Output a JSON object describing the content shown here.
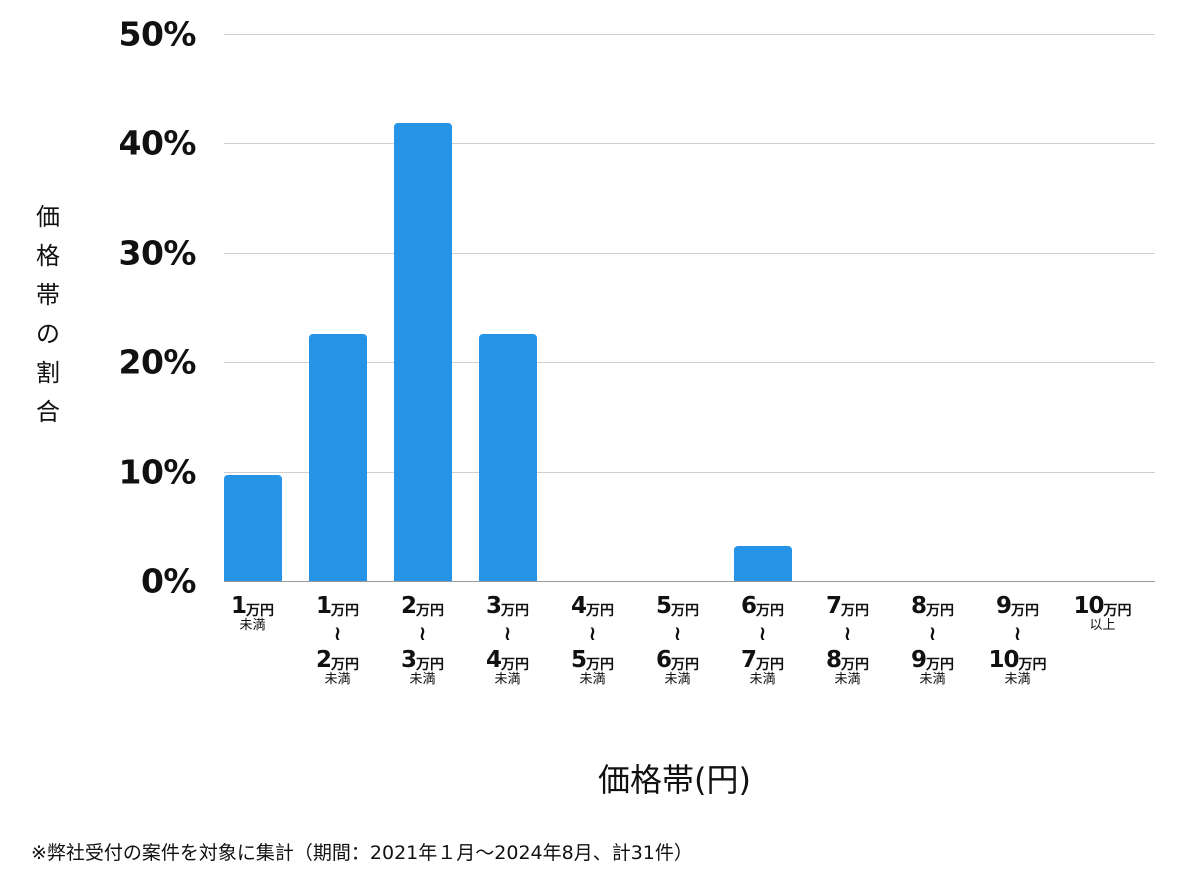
{
  "chart_data": {
    "type": "bar",
    "title": "",
    "xlabel": "価格帯(円)",
    "ylabel": "価格帯の割合",
    "ylim": [
      0,
      50
    ],
    "yticks": [
      "0%",
      "10%",
      "20%",
      "30%",
      "40%",
      "50%"
    ],
    "grid": true,
    "legend": null,
    "categories": [
      "1万円未満",
      "1万円〜2万円未満",
      "2万円〜3万円未満",
      "3万円〜4万円未満",
      "4万円〜5万円未満",
      "5万円〜6万円未満",
      "6万円〜7万円未満",
      "7万円〜8万円未満",
      "8万円〜9万円未満",
      "9万円〜10万円未満",
      "10万円以上"
    ],
    "values": [
      9.7,
      22.6,
      41.9,
      22.6,
      0,
      0,
      3.2,
      0,
      0,
      0,
      0
    ],
    "bar_color": "#2593e6",
    "footnote": "※弊社受付の案件を対象に集計（期間：2021年１月〜2024年8月、計31件）"
  },
  "axis": {
    "y_ticks": [
      {
        "label": "50%",
        "value": 50
      },
      {
        "label": "40%",
        "value": 40
      },
      {
        "label": "30%",
        "value": 30
      },
      {
        "label": "20%",
        "value": 20
      },
      {
        "label": "10%",
        "value": 10
      },
      {
        "label": "0%",
        "value": 0
      }
    ],
    "y_title_chars": [
      "価",
      "格",
      "帯",
      "の",
      "割",
      "合"
    ],
    "x_title": "価格帯(円)"
  },
  "x_labels": [
    {
      "a": "1",
      "b": null,
      "suffix": "未満"
    },
    {
      "a": "1",
      "b": "2",
      "suffix": "未満"
    },
    {
      "a": "2",
      "b": "3",
      "suffix": "未満"
    },
    {
      "a": "3",
      "b": "4",
      "suffix": "未満"
    },
    {
      "a": "4",
      "b": "5",
      "suffix": "未満"
    },
    {
      "a": "5",
      "b": "6",
      "suffix": "未満"
    },
    {
      "a": "6",
      "b": "7",
      "suffix": "未満"
    },
    {
      "a": "7",
      "b": "8",
      "suffix": "未満"
    },
    {
      "a": "8",
      "b": "9",
      "suffix": "未満"
    },
    {
      "a": "9",
      "b": "10",
      "suffix": "未満"
    },
    {
      "a": "10",
      "b": null,
      "suffix": "以上"
    }
  ],
  "unit": "万円",
  "wave": "≀",
  "footnote": "※弊社受付の案件を対象に集計（期間：2021年１月〜2024年8月、計31件）"
}
